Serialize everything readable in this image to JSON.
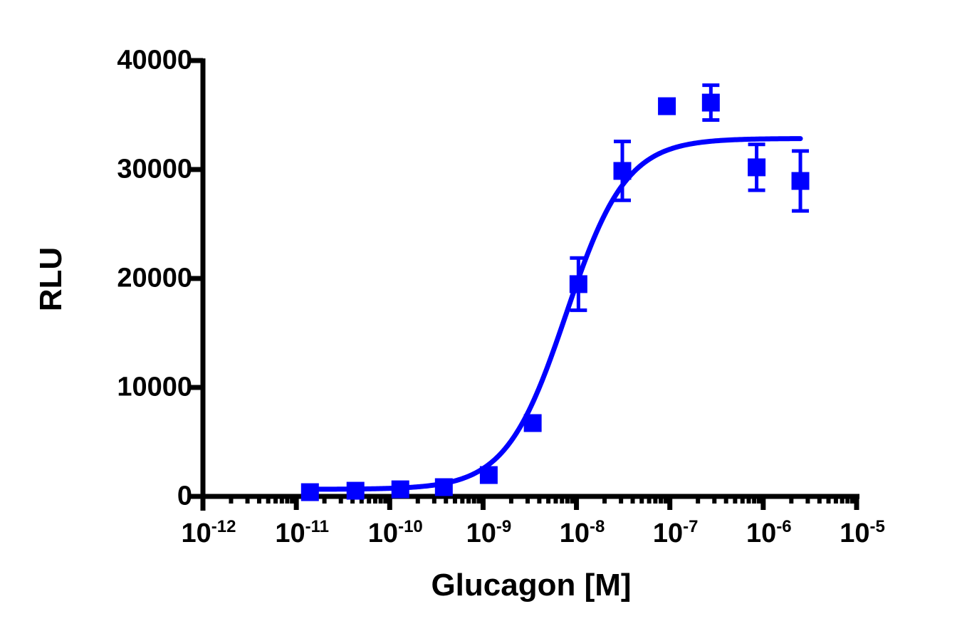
{
  "chart_data": {
    "type": "scatter",
    "title": "",
    "xlabel": "Glucagon [M]",
    "ylabel": "RLU",
    "xscale": "log",
    "xlim": [
      1e-12,
      1e-05
    ],
    "ylim": [
      0,
      40000
    ],
    "x_tick_labels": [
      {
        "base": "10",
        "exp": "-12",
        "value": 1e-12
      },
      {
        "base": "10",
        "exp": "-11",
        "value": 1e-11
      },
      {
        "base": "10",
        "exp": "-10",
        "value": 1e-10
      },
      {
        "base": "10",
        "exp": "-9",
        "value": 1e-09
      },
      {
        "base": "10",
        "exp": "-8",
        "value": 1e-08
      },
      {
        "base": "10",
        "exp": "-7",
        "value": 1e-07
      },
      {
        "base": "10",
        "exp": "-6",
        "value": 1e-06
      },
      {
        "base": "10",
        "exp": "-5",
        "value": 1e-05
      }
    ],
    "y_tick_labels": [
      "0",
      "10000",
      "20000",
      "30000",
      "40000"
    ],
    "y_ticks": [
      0,
      10000,
      20000,
      30000,
      40000
    ],
    "grid": false,
    "legend": null,
    "color": "#0000FF",
    "series": [
      {
        "name": "Glucagon",
        "marker": "square",
        "x": [
          1.4e-11,
          4.3e-11,
          1.3e-10,
          3.8e-10,
          1.15e-09,
          3.4e-09,
          1.05e-08,
          3.1e-08,
          9.3e-08,
          2.75e-07,
          8.5e-07,
          2.5e-06
        ],
        "y": [
          390,
          520,
          650,
          850,
          1960,
          6730,
          19480,
          29870,
          35810,
          36140,
          30200,
          28950
        ],
        "error": [
          150,
          150,
          150,
          150,
          250,
          400,
          2400,
          2700,
          500,
          1600,
          2100,
          2750
        ]
      }
    ],
    "fit": {
      "model": "4PL sigmoidal dose-response",
      "bottom": 650,
      "top": 32850,
      "logEC50": -8.11,
      "hill": 1.35,
      "x_range": [
        1.4e-11,
        2.5e-06
      ]
    }
  }
}
